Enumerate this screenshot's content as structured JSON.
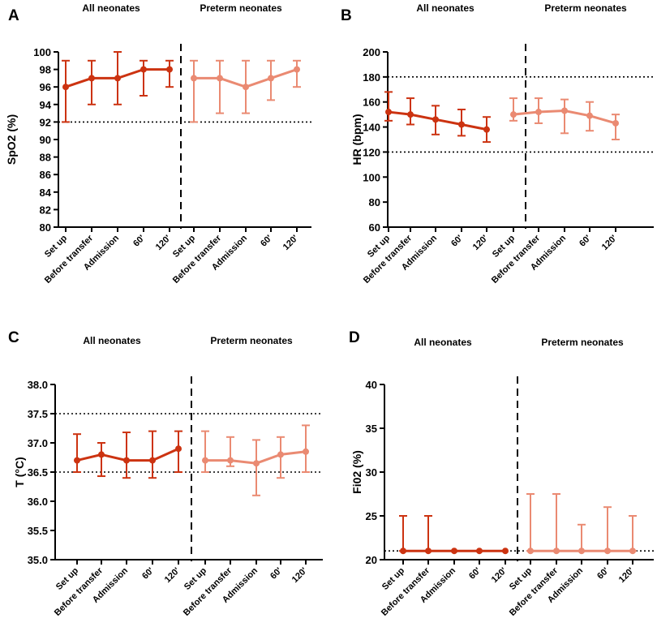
{
  "colors": {
    "all": "#cc3311",
    "preterm": "#ea8a72",
    "axis": "#000000"
  },
  "chart_data": [
    {
      "panel": "A",
      "type": "line",
      "ylabel": "SpO2 (%)",
      "ylim": [
        80,
        100
      ],
      "yticks": [
        80,
        82,
        84,
        86,
        88,
        90,
        92,
        94,
        96,
        98,
        100
      ],
      "reference_lines": [
        92
      ],
      "groups": [
        {
          "name": "All neonates",
          "categories": [
            "Set up",
            "Before transfer",
            "Admission",
            "60'",
            "120'"
          ],
          "values": [
            96,
            97,
            97,
            98,
            98
          ],
          "lower": [
            92,
            94,
            94,
            95,
            96
          ],
          "upper": [
            99,
            99,
            100,
            99,
            99
          ]
        },
        {
          "name": "Preterm neonates",
          "categories": [
            "Set up",
            "Before transfer",
            "Admission",
            "60'",
            "120'"
          ],
          "values": [
            97,
            97,
            96,
            97,
            98
          ],
          "lower": [
            92,
            93,
            93,
            94.5,
            96
          ],
          "upper": [
            99,
            99,
            99,
            99,
            99
          ]
        }
      ]
    },
    {
      "panel": "B",
      "type": "line",
      "ylabel": "HR (bpm)",
      "ylim": [
        60,
        200
      ],
      "yticks": [
        60,
        80,
        100,
        120,
        140,
        160,
        180,
        200
      ],
      "reference_lines": [
        120,
        180
      ],
      "groups": [
        {
          "name": "All neonates",
          "categories": [
            "Set up",
            "Before transfer",
            "Admission",
            "60'",
            "120'"
          ],
          "values": [
            152,
            150,
            146,
            142,
            138
          ],
          "lower": [
            145,
            142,
            134,
            133,
            128
          ],
          "upper": [
            168,
            163,
            157,
            154,
            148
          ]
        },
        {
          "name": "Preterm neonates",
          "categories": [
            "Set up",
            "Before transfer",
            "Admission",
            "60'",
            "120'"
          ],
          "values": [
            150,
            152,
            153,
            149,
            143
          ],
          "lower": [
            145,
            143,
            135,
            137,
            130
          ],
          "upper": [
            163,
            163,
            162,
            160,
            150
          ]
        }
      ]
    },
    {
      "panel": "C",
      "type": "line",
      "ylabel": "T (°C)",
      "ylim": [
        35.0,
        38.0
      ],
      "yticks": [
        "35.0",
        "35.5",
        "36.0",
        "36.5",
        "37.0",
        "37.5",
        "38.0"
      ],
      "reference_lines": [
        36.5,
        37.5
      ],
      "groups": [
        {
          "name": "All neonates",
          "categories": [
            "Set up",
            "Before transfer",
            "Admission",
            "60'",
            "120'"
          ],
          "values": [
            36.7,
            36.8,
            36.7,
            36.7,
            36.9
          ],
          "lower": [
            36.5,
            36.43,
            36.4,
            36.4,
            36.5
          ],
          "upper": [
            37.15,
            37.0,
            37.18,
            37.2,
            37.2
          ]
        },
        {
          "name": "Preterm neonates",
          "categories": [
            "Set up",
            "Before transfer",
            "Admission",
            "60'",
            "120'"
          ],
          "values": [
            36.7,
            36.7,
            36.65,
            36.8,
            36.85
          ],
          "lower": [
            36.5,
            36.6,
            36.1,
            36.4,
            36.5
          ],
          "upper": [
            37.2,
            37.1,
            37.05,
            37.1,
            37.3
          ]
        }
      ]
    },
    {
      "panel": "D",
      "type": "line",
      "ylabel": "Fi02 (%)",
      "ylim": [
        20,
        40
      ],
      "yticks": [
        20,
        25,
        30,
        35,
        40
      ],
      "reference_lines": [
        21
      ],
      "groups": [
        {
          "name": "All neonates",
          "categories": [
            "Set up",
            "Before transfer",
            "Admission",
            "60'",
            "120'"
          ],
          "values": [
            21,
            21,
            21,
            21,
            21
          ],
          "lower": [
            21,
            21,
            21,
            21,
            21
          ],
          "upper": [
            25,
            25,
            21,
            21,
            21
          ]
        },
        {
          "name": "Preterm neonates",
          "categories": [
            "Set up",
            "Before transfer",
            "Admission",
            "60'",
            "120'"
          ],
          "values": [
            21,
            21,
            21,
            21,
            21
          ],
          "lower": [
            21,
            21,
            21,
            21,
            21
          ],
          "upper": [
            27.5,
            27.5,
            24,
            26,
            25
          ]
        }
      ]
    }
  ]
}
